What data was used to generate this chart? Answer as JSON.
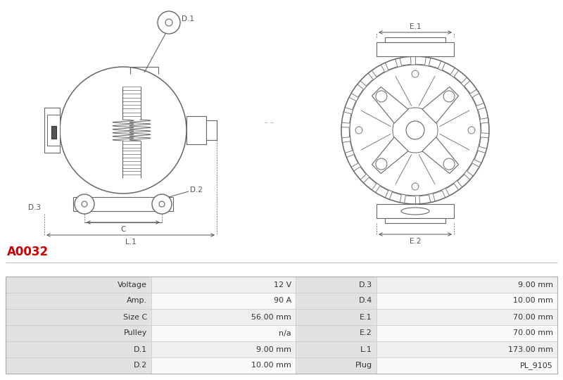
{
  "title_code": "A0032",
  "title_color": "#cc0000",
  "bg_color": "#ffffff",
  "table_data": [
    [
      "Voltage",
      "12 V",
      "D.3",
      "9.00 mm"
    ],
    [
      "Amp.",
      "90 A",
      "D.4",
      "10.00 mm"
    ],
    [
      "Size C",
      "56.00 mm",
      "E.1",
      "70.00 mm"
    ],
    [
      "Pulley",
      "n/a",
      "E.2",
      "70.00 mm"
    ],
    [
      "D.1",
      "9.00 mm",
      "L.1",
      "173.00 mm"
    ],
    [
      "D.2",
      "10.00 mm",
      "Plug",
      "PL_9105"
    ]
  ],
  "drawing_line_color": "#666666",
  "dim_label_color": "#555555",
  "table_row_bg_odd": "#efefef",
  "table_row_bg_even": "#fafafa",
  "table_label_bg": "#e2e2e2",
  "table_border_color": "#cccccc"
}
